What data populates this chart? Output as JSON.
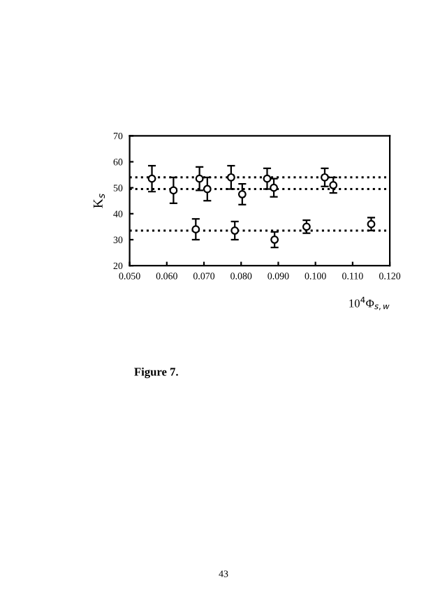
{
  "chart_data": {
    "type": "scatter",
    "xlabel": "10$^{4}$Φ$_{s,w}$",
    "ylabel": "K$_{s}$",
    "xlim": [
      0.05,
      0.12
    ],
    "xticks": [
      {
        "value": 0.05,
        "label": "0.050"
      },
      {
        "value": 0.06,
        "label": "0.060"
      },
      {
        "value": 0.07,
        "label": "0.070"
      },
      {
        "value": 0.08,
        "label": "0.080"
      },
      {
        "value": 0.09,
        "label": "0.090"
      },
      {
        "value": 0.1,
        "label": "0.100"
      },
      {
        "value": 0.11,
        "label": "0.110"
      },
      {
        "value": 0.12,
        "label": "0.120"
      }
    ],
    "ylim": [
      20,
      70
    ],
    "yticks": [
      20,
      30,
      40,
      50,
      60,
      70
    ],
    "marker": "circle",
    "grid": false,
    "series": [
      {
        "color": "#000000",
        "x": [
          0.056,
          0.0688,
          0.0773,
          0.087,
          0.1025
        ],
        "values": [
          53.5,
          53.5,
          54,
          53.5,
          54
        ],
        "errors": [
          5,
          4.5,
          4.5,
          4,
          3.5
        ]
      },
      {
        "color": "#000000",
        "x": [
          0.0618,
          0.0709,
          0.0803,
          0.0888,
          0.1048
        ],
        "values": [
          49,
          49.5,
          47.5,
          50,
          51
        ],
        "errors": [
          5,
          4.5,
          4,
          3.5,
          3
        ]
      },
      {
        "color": "#000000",
        "x": [
          0.0678,
          0.0783,
          0.089,
          0.0976,
          0.115
        ],
        "values": [
          34,
          33.5,
          30,
          35,
          36
        ],
        "errors": [
          4,
          3.5,
          3,
          2.5,
          2.5
        ]
      }
    ],
    "ref_lines": [
      {
        "axis": "y",
        "value": 54,
        "line_style": "dotted"
      },
      {
        "axis": "y",
        "value": 49.5,
        "line_style": "dotted"
      },
      {
        "axis": "y",
        "value": 33.5,
        "line_style": "dotted"
      }
    ],
    "annotations": [
      "Figure 7.",
      "43"
    ]
  }
}
